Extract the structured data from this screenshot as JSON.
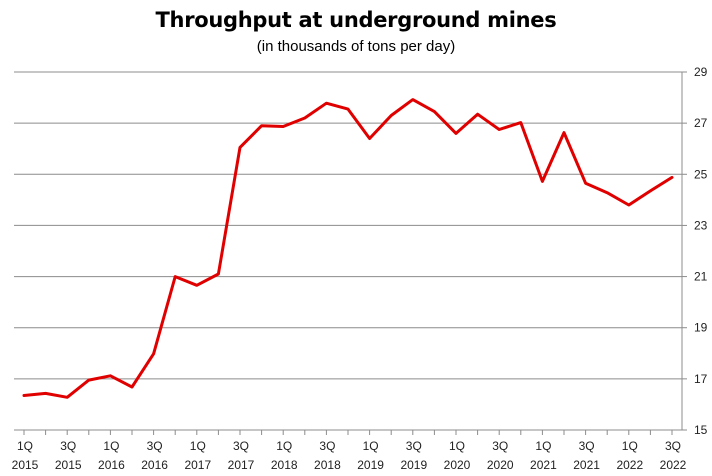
{
  "chart_data": {
    "type": "line",
    "title": "Throughput at underground mines",
    "subtitle": "(in thousands of tons per day)",
    "xlabel": "",
    "ylabel": "",
    "ylim": [
      15,
      29
    ],
    "y_ticks": [
      15,
      17,
      19,
      21,
      23,
      25,
      27,
      29
    ],
    "y_axis_side": "right",
    "grid": true,
    "legend": "none",
    "series_color": "#e00000",
    "x": [
      "1Q 2015",
      "2Q 2015",
      "3Q 2015",
      "4Q 2015",
      "1Q 2016",
      "2Q 2016",
      "3Q 2016",
      "4Q 2016",
      "1Q 2017",
      "2Q 2017",
      "3Q 2017",
      "4Q 2017",
      "1Q 2018",
      "2Q 2018",
      "3Q 2018",
      "4Q 2018",
      "1Q 2019",
      "2Q 2019",
      "3Q 2019",
      "4Q 2019",
      "1Q 2020",
      "2Q 2020",
      "3Q 2020",
      "4Q 2020",
      "1Q 2021",
      "2Q 2021",
      "3Q 2021",
      "4Q 2021",
      "1Q 2022",
      "2Q 2022",
      "3Q 2022"
    ],
    "x_tick_labels": [
      {
        "q": "1Q",
        "y": "2015",
        "i": 0
      },
      {
        "q": "3Q",
        "y": "2015",
        "i": 2
      },
      {
        "q": "1Q",
        "y": "2016",
        "i": 4
      },
      {
        "q": "3Q",
        "y": "2016",
        "i": 6
      },
      {
        "q": "1Q",
        "y": "2017",
        "i": 8
      },
      {
        "q": "3Q",
        "y": "2017",
        "i": 10
      },
      {
        "q": "1Q",
        "y": "2018",
        "i": 12
      },
      {
        "q": "3Q",
        "y": "2018",
        "i": 14
      },
      {
        "q": "1Q",
        "y": "2019",
        "i": 16
      },
      {
        "q": "3Q",
        "y": "2019",
        "i": 18
      },
      {
        "q": "1Q",
        "y": "2020",
        "i": 20
      },
      {
        "q": "3Q",
        "y": "2020",
        "i": 22
      },
      {
        "q": "1Q",
        "y": "2021",
        "i": 24
      },
      {
        "q": "3Q",
        "y": "2021",
        "i": 26
      },
      {
        "q": "1Q",
        "y": "2022",
        "i": 28
      },
      {
        "q": "3Q",
        "y": "2022",
        "i": 30
      }
    ],
    "series": [
      {
        "values": [
          16.35,
          16.43,
          16.28,
          16.95,
          17.12,
          16.68,
          17.98,
          21.0,
          20.66,
          21.1,
          26.05,
          26.9,
          26.87,
          27.2,
          27.78,
          27.55,
          26.4,
          27.3,
          27.92,
          27.45,
          26.6,
          27.35,
          26.75,
          27.02,
          24.72,
          26.63,
          24.65,
          24.28,
          23.8,
          24.35,
          24.88
        ]
      }
    ]
  }
}
